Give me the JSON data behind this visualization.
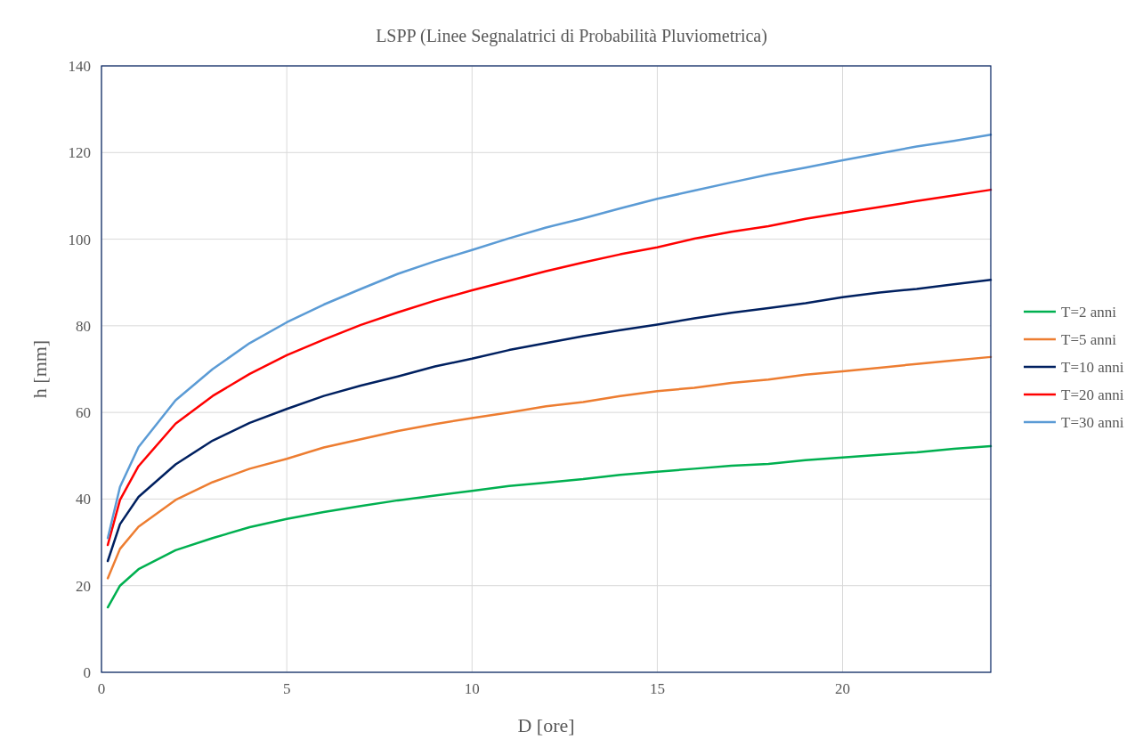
{
  "chart_data": {
    "type": "line",
    "title": "LSPP (Linee Segnalatrici di Probabilità Pluviometrica)",
    "xlabel": "D [ore]",
    "ylabel": "h [mm]",
    "x": [
      0.17,
      0.5,
      1,
      2,
      3,
      4,
      5,
      6,
      7,
      8,
      9,
      10,
      11,
      12,
      13,
      14,
      15,
      16,
      17,
      18,
      19,
      20,
      21,
      22,
      23,
      24
    ],
    "series": [
      {
        "name": "T=2 anni",
        "color": "#00b050",
        "values": [
          15,
          20,
          23.8,
          28.2,
          31,
          33.5,
          35.4,
          37,
          38.4,
          39.7,
          40.8,
          41.9,
          43,
          43.8,
          44.6,
          45.6,
          46.3,
          47,
          47.7,
          48.1,
          49,
          49.6,
          50.2,
          50.8,
          51.6,
          52.2
        ]
      },
      {
        "name": "T=5 anni",
        "color": "#ed7d31",
        "values": [
          21.7,
          28.5,
          33.6,
          39.8,
          43.9,
          47,
          49.3,
          51.9,
          53.8,
          55.7,
          57.3,
          58.7,
          60,
          61.4,
          62.4,
          63.8,
          64.9,
          65.7,
          66.8,
          67.6,
          68.7,
          69.5,
          70.3,
          71.2,
          72,
          72.8
        ]
      },
      {
        "name": "T=10 anni",
        "color": "#002060",
        "values": [
          25.7,
          34.2,
          40.5,
          48,
          53.5,
          57.6,
          60.8,
          63.8,
          66.2,
          68.3,
          70.6,
          72.4,
          74.4,
          76,
          77.6,
          79,
          80.3,
          81.7,
          83,
          84.1,
          85.2,
          86.6,
          87.7,
          88.5,
          89.6,
          90.6
        ]
      },
      {
        "name": "T=20 anni",
        "color": "#ff0000",
        "values": [
          29.4,
          39.8,
          47.6,
          57.4,
          63.8,
          68.9,
          73.2,
          76.8,
          80.2,
          83.1,
          85.8,
          88.2,
          90.4,
          92.6,
          94.6,
          96.5,
          98.1,
          100.1,
          101.7,
          103,
          104.7,
          106.1,
          107.4,
          108.8,
          110.1,
          111.4
        ]
      },
      {
        "name": "T=30 anni",
        "color": "#5b9bd5",
        "values": [
          31,
          42.8,
          52,
          62.8,
          70,
          76,
          80.8,
          84.9,
          88.5,
          92,
          94.9,
          97.5,
          100.2,
          102.7,
          104.8,
          107.1,
          109.3,
          111.2,
          113.1,
          114.9,
          116.5,
          118.2,
          119.8,
          121.4,
          122.7,
          124.1
        ]
      }
    ],
    "xlim": [
      0,
      24
    ],
    "xticks": [
      0,
      5,
      10,
      15,
      20
    ],
    "ylim": [
      0,
      140
    ],
    "yticks": [
      0,
      20,
      40,
      60,
      80,
      100,
      120,
      140
    ],
    "grid": true,
    "legend": "right",
    "marker": "none",
    "line_style": "solid"
  }
}
